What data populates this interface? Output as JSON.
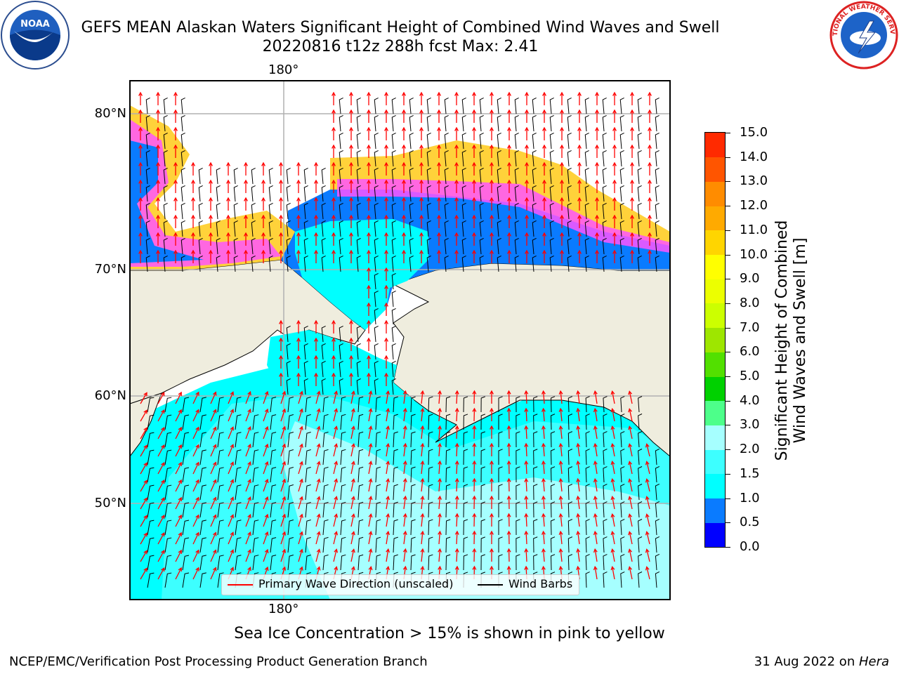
{
  "header": {
    "title_line1": "GEFS MEAN Alaskan Waters Significant Height of Combined Wind Waves and Swell",
    "title_line2": "20220816 t12z 288h fcst    Max: 2.41"
  },
  "logos": {
    "left": {
      "icon": "noaa-logo-icon",
      "text": "NOAA"
    },
    "right": {
      "icon": "nws-logo-icon",
      "text": "NATIONAL WEATHER SERVICE"
    }
  },
  "map": {
    "lon_label_top": "180°",
    "lon_label_bottom": "180°",
    "lat_labels": [
      "80°N",
      "70°N",
      "60°N",
      "50°N"
    ],
    "colors": {
      "land": "#efedde",
      "ice_yellow": "#ffd23a",
      "ice_pink": "#ff55ff",
      "wave_blue": "#0a7bff",
      "wave_deep": "#0000ff",
      "wave_cyan": "#00ffff",
      "wave_light": "#a6ffff",
      "arrow_red": "#ff0000"
    }
  },
  "legend": {
    "primary_wave": "Primary Wave Direction (unscaled)",
    "wind_barbs": "Wind Barbs"
  },
  "colorbar": {
    "label_line1": "Significant Height of Combined",
    "label_line2": "Wind Waves and Swell [m]",
    "ticks": [
      "0.0",
      "0.5",
      "1.0",
      "1.5",
      "2.0",
      "3.0",
      "4.0",
      "5.0",
      "6.0",
      "7.0",
      "8.0",
      "9.0",
      "10.0",
      "11.0",
      "12.0",
      "13.0",
      "14.0",
      "15.0"
    ],
    "colors": [
      "#0000ff",
      "#0a7bff",
      "#00ffff",
      "#3dffff",
      "#a6ffff",
      "#4dff8a",
      "#00d100",
      "#52e000",
      "#9ee600",
      "#ccff00",
      "#ecff00",
      "#ffff00",
      "#ffd500",
      "#ffaa00",
      "#ff8c00",
      "#ff5500",
      "#ff2a00",
      "#ff0000"
    ]
  },
  "note": "Sea Ice Concentration > 15% is shown in pink to yellow",
  "footer": {
    "left": "NCEP/EMC/Verification Post Processing Product Generation Branch",
    "right_prefix": "31 Aug 2022 on ",
    "right_machine": "Hera"
  }
}
